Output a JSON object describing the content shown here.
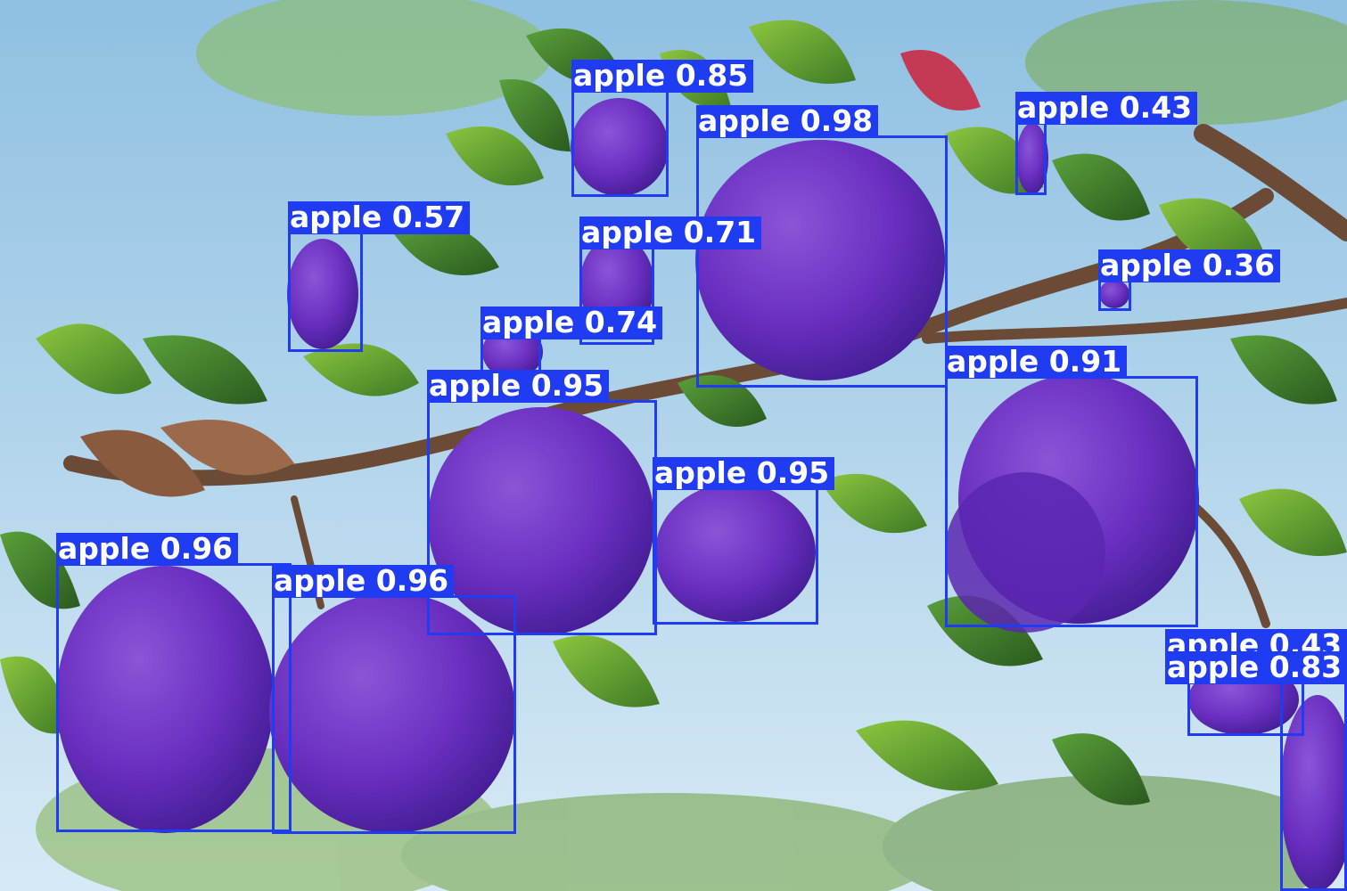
{
  "box_color": "#1f3cf2",
  "detections": [
    {
      "label": "apple 0.85"
    },
    {
      "label": "apple 0.98"
    },
    {
      "label": "apple 0.43"
    },
    {
      "label": "apple 0.57"
    },
    {
      "label": "apple 0.71"
    },
    {
      "label": "apple 0.36"
    },
    {
      "label": "apple 0.74"
    },
    {
      "label": "apple 0.91"
    },
    {
      "label": "apple 0.95"
    },
    {
      "label": "apple 0.95"
    },
    {
      "label": "apple 0.96"
    },
    {
      "label": "apple 0.96"
    },
    {
      "label": "apple 0.43"
    },
    {
      "label": "apple 0.83"
    }
  ]
}
